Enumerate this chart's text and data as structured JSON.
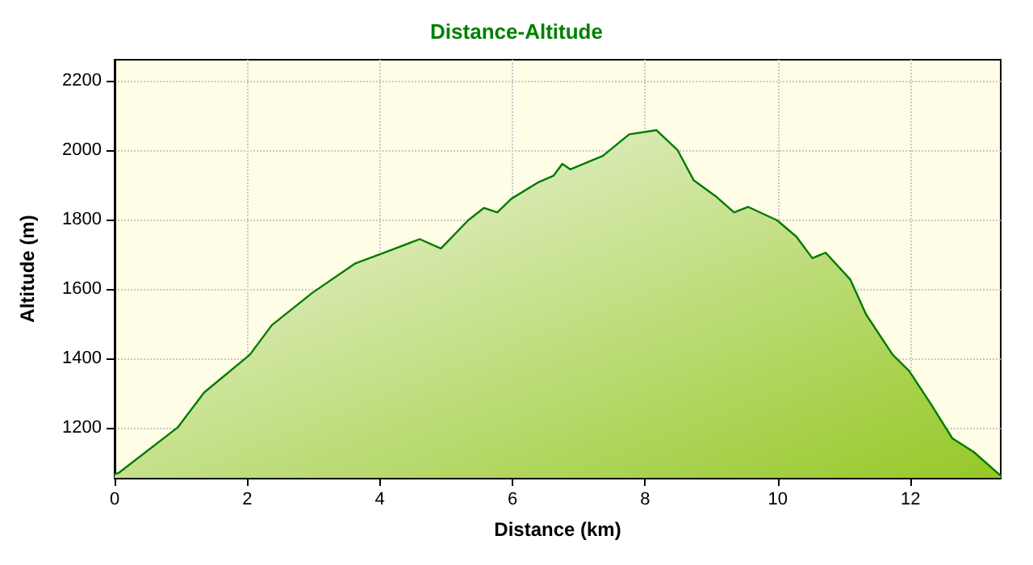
{
  "chart_data": {
    "type": "area",
    "title": "Distance-Altitude",
    "xlabel": "Distance (km)",
    "ylabel": "Altitude (m)",
    "x": [
      0,
      0.06,
      0.95,
      1.35,
      2.04,
      2.37,
      2.98,
      3.63,
      4.11,
      4.6,
      4.92,
      5.33,
      5.57,
      5.77,
      5.98,
      6.38,
      6.62,
      6.75,
      6.87,
      7.36,
      7.76,
      8.17,
      8.49,
      8.73,
      9.06,
      9.34,
      9.55,
      9.99,
      10.28,
      10.52,
      10.72,
      11.09,
      11.33,
      11.73,
      11.98,
      12.3,
      12.63,
      12.95,
      13.36
    ],
    "series": [
      {
        "color": "#007a00",
        "values": [
          1065,
          1069,
          1200,
          1301,
          1410,
          1495,
          1588,
          1673,
          1707,
          1743,
          1716,
          1797,
          1833,
          1820,
          1859,
          1906,
          1926,
          1960,
          1944,
          1983,
          2045,
          2057,
          1999,
          1913,
          1867,
          1820,
          1836,
          1797,
          1750,
          1688,
          1704,
          1627,
          1526,
          1410,
          1363,
          1270,
          1169,
          1130,
          1061
        ]
      }
    ],
    "xlim": [
      0,
      13.36
    ],
    "xticks": [
      0,
      2,
      4,
      6,
      8,
      10,
      12
    ],
    "ylim": [
      1055,
      2260
    ],
    "yticks": [
      1200,
      1400,
      1600,
      1800,
      2000,
      2200
    ],
    "grid": true,
    "marker": "none",
    "line_style": "solid"
  }
}
